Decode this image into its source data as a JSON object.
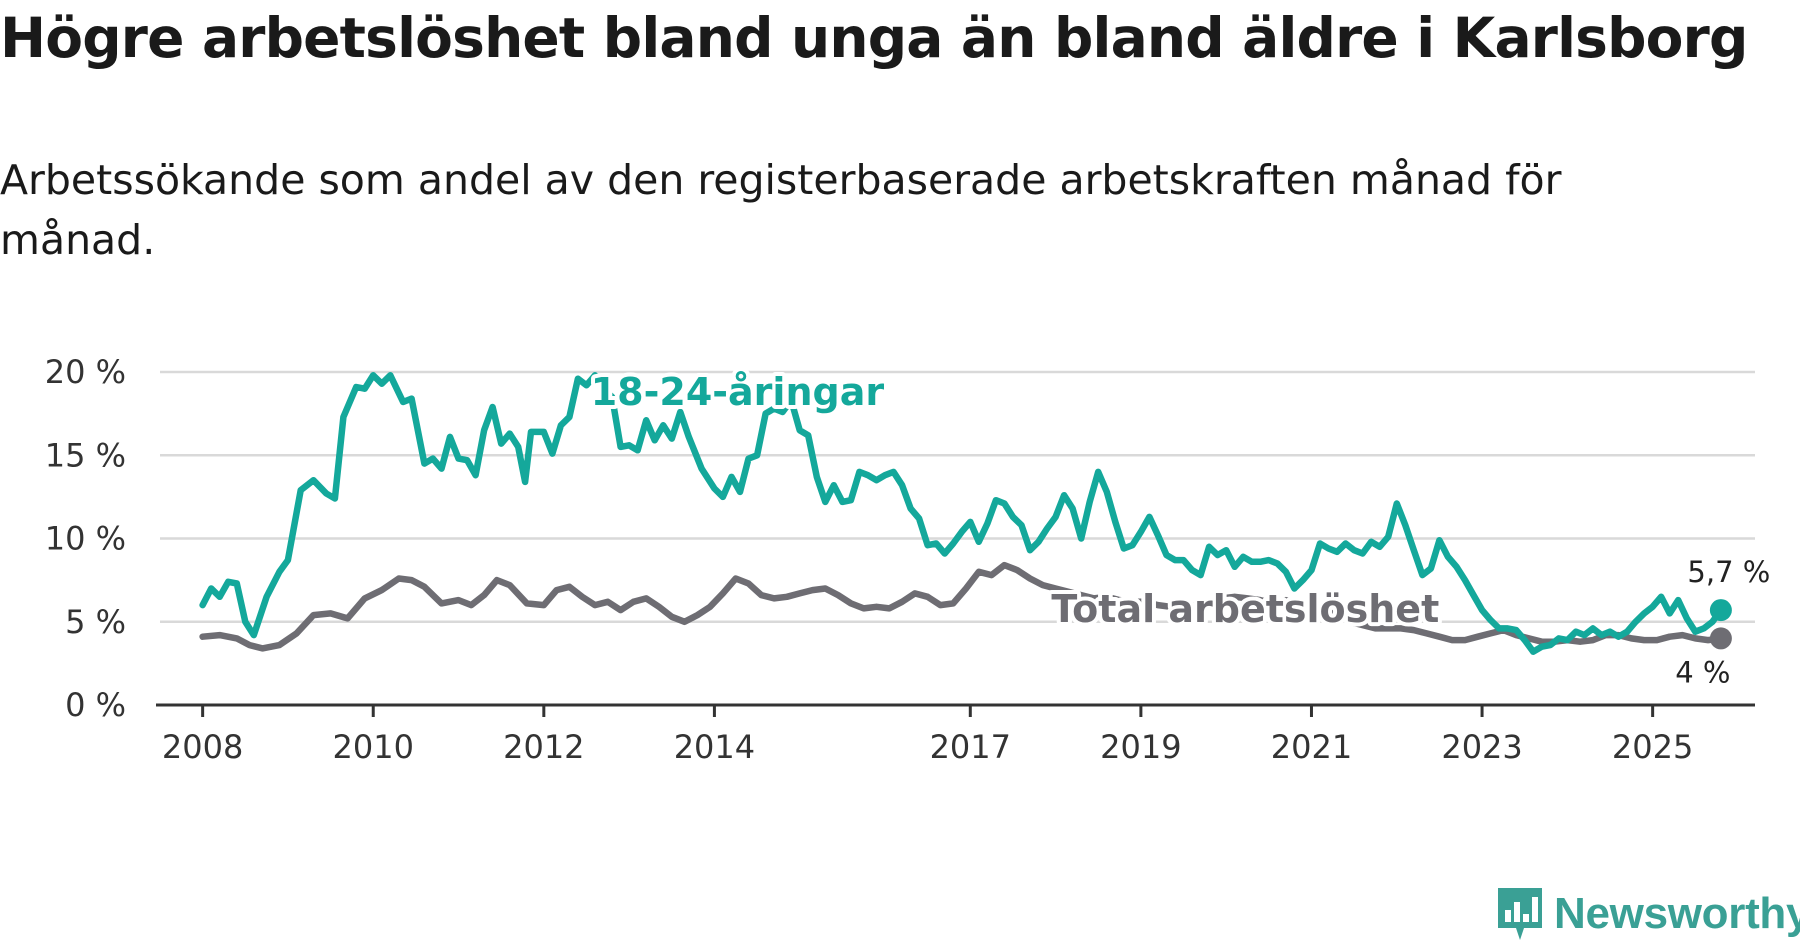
{
  "title": "Högre arbetslöshet bland unga än bland äldre i Karlsborg",
  "subtitle": "Arbetssökande som andel av den registerbaserade arbetskraften månad för månad.",
  "brand": {
    "name": "Newsworthy",
    "color": "#3aa095",
    "icon": "newsworthy-logo-icon"
  },
  "chart_data": {
    "type": "line",
    "title": "Högre arbetslöshet bland unga än bland äldre i Karlsborg",
    "xlabel": "",
    "ylabel": "",
    "ylim": [
      0,
      20
    ],
    "y_ticks": [
      {
        "value": 0,
        "label": "0 %"
      },
      {
        "value": 5,
        "label": "5 %"
      },
      {
        "value": 10,
        "label": "10 %"
      },
      {
        "value": 15,
        "label": "15 %"
      },
      {
        "value": 20,
        "label": "20 %"
      }
    ],
    "x_ticks": [
      {
        "value": 2008,
        "label": "2008"
      },
      {
        "value": 2010,
        "label": "2010"
      },
      {
        "value": 2012,
        "label": "2012"
      },
      {
        "value": 2014,
        "label": "2014"
      },
      {
        "value": 2017,
        "label": "2017"
      },
      {
        "value": 2019,
        "label": "2019"
      },
      {
        "value": 2021,
        "label": "2021"
      },
      {
        "value": 2023,
        "label": "2023"
      },
      {
        "value": 2025,
        "label": "2025"
      }
    ],
    "xlim": [
      2007.5,
      2026.2
    ],
    "grid": true,
    "series": [
      {
        "name": "Total arbetslöshet",
        "label": "Total arbetslöshet",
        "color": "#6e6d73",
        "end_label": "4 %",
        "points": [
          [
            2008.0,
            4.1
          ],
          [
            2008.2,
            4.2
          ],
          [
            2008.4,
            4.0
          ],
          [
            2008.55,
            3.6
          ],
          [
            2008.7,
            3.4
          ],
          [
            2008.9,
            3.6
          ],
          [
            2009.1,
            4.3
          ],
          [
            2009.3,
            5.4
          ],
          [
            2009.5,
            5.5
          ],
          [
            2009.7,
            5.2
          ],
          [
            2009.9,
            6.4
          ],
          [
            2010.1,
            6.9
          ],
          [
            2010.3,
            7.6
          ],
          [
            2010.45,
            7.5
          ],
          [
            2010.6,
            7.1
          ],
          [
            2010.8,
            6.1
          ],
          [
            2011.0,
            6.3
          ],
          [
            2011.15,
            6.0
          ],
          [
            2011.3,
            6.6
          ],
          [
            2011.45,
            7.5
          ],
          [
            2011.6,
            7.2
          ],
          [
            2011.8,
            6.1
          ],
          [
            2012.0,
            6.0
          ],
          [
            2012.15,
            6.9
          ],
          [
            2012.3,
            7.1
          ],
          [
            2012.45,
            6.5
          ],
          [
            2012.6,
            6.0
          ],
          [
            2012.75,
            6.2
          ],
          [
            2012.9,
            5.7
          ],
          [
            2013.05,
            6.2
          ],
          [
            2013.2,
            6.4
          ],
          [
            2013.35,
            5.9
          ],
          [
            2013.5,
            5.3
          ],
          [
            2013.65,
            5.0
          ],
          [
            2013.8,
            5.4
          ],
          [
            2013.95,
            5.9
          ],
          [
            2014.1,
            6.7
          ],
          [
            2014.25,
            7.6
          ],
          [
            2014.4,
            7.3
          ],
          [
            2014.55,
            6.6
          ],
          [
            2014.7,
            6.4
          ],
          [
            2014.85,
            6.5
          ],
          [
            2015.0,
            6.7
          ],
          [
            2015.15,
            6.9
          ],
          [
            2015.3,
            7.0
          ],
          [
            2015.45,
            6.6
          ],
          [
            2015.6,
            6.1
          ],
          [
            2015.75,
            5.8
          ],
          [
            2015.9,
            5.9
          ],
          [
            2016.05,
            5.8
          ],
          [
            2016.2,
            6.2
          ],
          [
            2016.35,
            6.7
          ],
          [
            2016.5,
            6.5
          ],
          [
            2016.65,
            6.0
          ],
          [
            2016.8,
            6.1
          ],
          [
            2016.95,
            7.0
          ],
          [
            2017.1,
            8.0
          ],
          [
            2017.25,
            7.8
          ],
          [
            2017.4,
            8.4
          ],
          [
            2017.55,
            8.1
          ],
          [
            2017.7,
            7.6
          ],
          [
            2017.85,
            7.2
          ],
          [
            2018.0,
            7.0
          ],
          [
            2018.15,
            6.8
          ],
          [
            2018.3,
            6.6
          ],
          [
            2018.45,
            6.4
          ],
          [
            2018.6,
            6.5
          ],
          [
            2018.75,
            6.3
          ],
          [
            2018.9,
            6.2
          ],
          [
            2019.05,
            6.2
          ],
          [
            2019.2,
            6.0
          ],
          [
            2019.35,
            5.9
          ],
          [
            2019.5,
            5.9
          ],
          [
            2019.65,
            6.0
          ],
          [
            2019.8,
            6.2
          ],
          [
            2019.95,
            6.4
          ],
          [
            2020.1,
            6.5
          ],
          [
            2020.25,
            6.4
          ],
          [
            2020.4,
            6.3
          ],
          [
            2020.55,
            6.1
          ],
          [
            2020.7,
            6.3
          ],
          [
            2020.85,
            6.0
          ],
          [
            2021.0,
            5.8
          ],
          [
            2021.15,
            5.7
          ],
          [
            2021.3,
            5.4
          ],
          [
            2021.45,
            5.0
          ],
          [
            2021.6,
            4.8
          ],
          [
            2021.75,
            4.6
          ],
          [
            2021.9,
            4.6
          ],
          [
            2022.05,
            4.6
          ],
          [
            2022.2,
            4.5
          ],
          [
            2022.35,
            4.3
          ],
          [
            2022.5,
            4.1
          ],
          [
            2022.65,
            3.9
          ],
          [
            2022.8,
            3.9
          ],
          [
            2022.95,
            4.1
          ],
          [
            2023.1,
            4.3
          ],
          [
            2023.25,
            4.5
          ],
          [
            2023.4,
            4.2
          ],
          [
            2023.55,
            4.0
          ],
          [
            2023.7,
            3.8
          ],
          [
            2023.85,
            3.8
          ],
          [
            2024.0,
            3.9
          ],
          [
            2024.15,
            3.8
          ],
          [
            2024.3,
            3.9
          ],
          [
            2024.45,
            4.2
          ],
          [
            2024.6,
            4.2
          ],
          [
            2024.75,
            4.0
          ],
          [
            2024.9,
            3.9
          ],
          [
            2025.05,
            3.9
          ],
          [
            2025.2,
            4.1
          ],
          [
            2025.35,
            4.2
          ],
          [
            2025.5,
            4.0
          ],
          [
            2025.65,
            3.9
          ],
          [
            2025.8,
            4.0
          ]
        ]
      },
      {
        "name": "18-24-åringar",
        "label": "18-24-åringar",
        "color": "#14a89b",
        "end_label": "5,7 %",
        "points": [
          [
            2008.0,
            6.0
          ],
          [
            2008.1,
            7.0
          ],
          [
            2008.2,
            6.5
          ],
          [
            2008.3,
            7.4
          ],
          [
            2008.4,
            7.3
          ],
          [
            2008.5,
            5.0
          ],
          [
            2008.6,
            4.2
          ],
          [
            2008.75,
            6.5
          ],
          [
            2008.9,
            8.0
          ],
          [
            2009.0,
            8.7
          ],
          [
            2009.15,
            12.9
          ],
          [
            2009.3,
            13.5
          ],
          [
            2009.45,
            12.7
          ],
          [
            2009.55,
            12.4
          ],
          [
            2009.65,
            17.3
          ],
          [
            2009.8,
            19.1
          ],
          [
            2009.9,
            19.0
          ],
          [
            2010.0,
            19.8
          ],
          [
            2010.1,
            19.3
          ],
          [
            2010.2,
            19.8
          ],
          [
            2010.35,
            18.2
          ],
          [
            2010.45,
            18.4
          ],
          [
            2010.6,
            14.5
          ],
          [
            2010.7,
            14.8
          ],
          [
            2010.8,
            14.2
          ],
          [
            2010.9,
            16.1
          ],
          [
            2011.0,
            14.8
          ],
          [
            2011.1,
            14.7
          ],
          [
            2011.2,
            13.8
          ],
          [
            2011.3,
            16.5
          ],
          [
            2011.4,
            17.9
          ],
          [
            2011.5,
            15.7
          ],
          [
            2011.6,
            16.3
          ],
          [
            2011.7,
            15.5
          ],
          [
            2011.78,
            13.4
          ],
          [
            2011.85,
            16.4
          ],
          [
            2012.0,
            16.4
          ],
          [
            2012.1,
            15.1
          ],
          [
            2012.2,
            16.8
          ],
          [
            2012.3,
            17.3
          ],
          [
            2012.4,
            19.6
          ],
          [
            2012.5,
            19.2
          ],
          [
            2012.6,
            19.8
          ],
          [
            2012.7,
            19.0
          ],
          [
            2012.8,
            18.5
          ],
          [
            2012.9,
            15.5
          ],
          [
            2013.0,
            15.6
          ],
          [
            2013.1,
            15.3
          ],
          [
            2013.2,
            17.1
          ],
          [
            2013.3,
            15.9
          ],
          [
            2013.4,
            16.8
          ],
          [
            2013.5,
            16.0
          ],
          [
            2013.6,
            17.6
          ],
          [
            2013.7,
            16.1
          ],
          [
            2013.85,
            14.2
          ],
          [
            2014.0,
            13.0
          ],
          [
            2014.1,
            12.5
          ],
          [
            2014.2,
            13.7
          ],
          [
            2014.3,
            12.8
          ],
          [
            2014.4,
            14.8
          ],
          [
            2014.5,
            15.0
          ],
          [
            2014.6,
            17.5
          ],
          [
            2014.7,
            17.8
          ],
          [
            2014.8,
            17.6
          ],
          [
            2014.9,
            18.3
          ],
          [
            2015.0,
            16.5
          ],
          [
            2015.1,
            16.2
          ],
          [
            2015.2,
            13.7
          ],
          [
            2015.3,
            12.2
          ],
          [
            2015.4,
            13.2
          ],
          [
            2015.5,
            12.2
          ],
          [
            2015.6,
            12.3
          ],
          [
            2015.7,
            14.0
          ],
          [
            2015.8,
            13.8
          ],
          [
            2015.9,
            13.5
          ],
          [
            2016.0,
            13.8
          ],
          [
            2016.1,
            14.0
          ],
          [
            2016.2,
            13.2
          ],
          [
            2016.3,
            11.8
          ],
          [
            2016.4,
            11.2
          ],
          [
            2016.5,
            9.6
          ],
          [
            2016.6,
            9.7
          ],
          [
            2016.7,
            9.1
          ],
          [
            2016.8,
            9.7
          ],
          [
            2016.9,
            10.4
          ],
          [
            2017.0,
            11.0
          ],
          [
            2017.1,
            9.8
          ],
          [
            2017.2,
            10.9
          ],
          [
            2017.3,
            12.3
          ],
          [
            2017.4,
            12.1
          ],
          [
            2017.5,
            11.3
          ],
          [
            2017.6,
            10.8
          ],
          [
            2017.7,
            9.3
          ],
          [
            2017.8,
            9.8
          ],
          [
            2017.9,
            10.6
          ],
          [
            2018.0,
            11.3
          ],
          [
            2018.1,
            12.6
          ],
          [
            2018.2,
            11.8
          ],
          [
            2018.3,
            10.0
          ],
          [
            2018.4,
            12.2
          ],
          [
            2018.5,
            14.0
          ],
          [
            2018.6,
            12.8
          ],
          [
            2018.7,
            11.0
          ],
          [
            2018.8,
            9.4
          ],
          [
            2018.9,
            9.6
          ],
          [
            2019.0,
            10.4
          ],
          [
            2019.1,
            11.3
          ],
          [
            2019.2,
            10.2
          ],
          [
            2019.3,
            9.0
          ],
          [
            2019.4,
            8.7
          ],
          [
            2019.5,
            8.7
          ],
          [
            2019.6,
            8.1
          ],
          [
            2019.7,
            7.8
          ],
          [
            2019.8,
            9.5
          ],
          [
            2019.9,
            9.0
          ],
          [
            2020.0,
            9.3
          ],
          [
            2020.1,
            8.3
          ],
          [
            2020.2,
            8.9
          ],
          [
            2020.3,
            8.6
          ],
          [
            2020.4,
            8.6
          ],
          [
            2020.5,
            8.7
          ],
          [
            2020.6,
            8.5
          ],
          [
            2020.7,
            8.0
          ],
          [
            2020.8,
            7.0
          ],
          [
            2020.9,
            7.5
          ],
          [
            2021.0,
            8.1
          ],
          [
            2021.1,
            9.7
          ],
          [
            2021.2,
            9.4
          ],
          [
            2021.3,
            9.2
          ],
          [
            2021.4,
            9.7
          ],
          [
            2021.5,
            9.3
          ],
          [
            2021.6,
            9.1
          ],
          [
            2021.7,
            9.8
          ],
          [
            2021.8,
            9.5
          ],
          [
            2021.9,
            10.1
          ],
          [
            2022.0,
            12.1
          ],
          [
            2022.1,
            10.8
          ],
          [
            2022.2,
            9.3
          ],
          [
            2022.3,
            7.8
          ],
          [
            2022.4,
            8.2
          ],
          [
            2022.5,
            9.9
          ],
          [
            2022.6,
            8.9
          ],
          [
            2022.7,
            8.3
          ],
          [
            2022.8,
            7.5
          ],
          [
            2022.9,
            6.6
          ],
          [
            2023.0,
            5.7
          ],
          [
            2023.1,
            5.1
          ],
          [
            2023.2,
            4.6
          ],
          [
            2023.3,
            4.6
          ],
          [
            2023.4,
            4.5
          ],
          [
            2023.5,
            3.9
          ],
          [
            2023.6,
            3.2
          ],
          [
            2023.7,
            3.5
          ],
          [
            2023.8,
            3.6
          ],
          [
            2023.9,
            4.0
          ],
          [
            2024.0,
            3.9
          ],
          [
            2024.1,
            4.4
          ],
          [
            2024.2,
            4.2
          ],
          [
            2024.3,
            4.6
          ],
          [
            2024.4,
            4.2
          ],
          [
            2024.5,
            4.4
          ],
          [
            2024.6,
            4.1
          ],
          [
            2024.7,
            4.4
          ],
          [
            2024.8,
            5.0
          ],
          [
            2024.9,
            5.5
          ],
          [
            2025.0,
            5.9
          ],
          [
            2025.1,
            6.5
          ],
          [
            2025.2,
            5.5
          ],
          [
            2025.3,
            6.3
          ],
          [
            2025.4,
            5.2
          ],
          [
            2025.5,
            4.4
          ],
          [
            2025.6,
            4.6
          ],
          [
            2025.7,
            5.0
          ],
          [
            2025.8,
            5.7
          ]
        ]
      }
    ]
  }
}
